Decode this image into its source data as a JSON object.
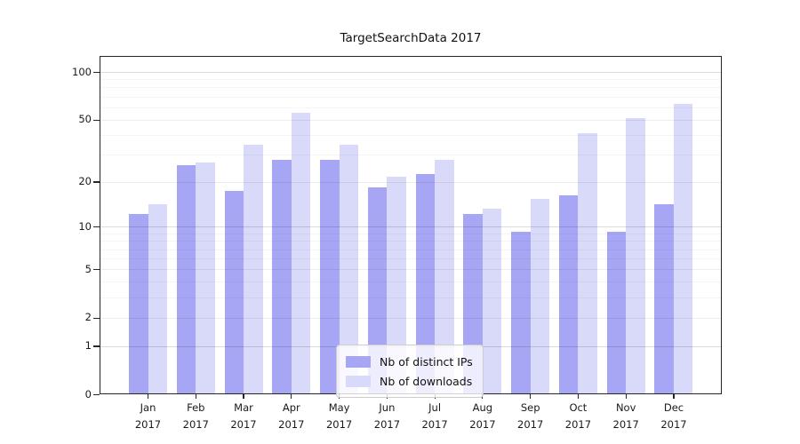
{
  "title": "TargetSearchData 2017",
  "chart_data": {
    "type": "bar",
    "title": "TargetSearchData 2017",
    "xlabel": "",
    "ylabel": "",
    "y_scale": "log(1+y) (symlog-like, 0 at baseline)",
    "grid": true,
    "legend_position": "inside lower center",
    "year": "2017",
    "months": [
      "Jan",
      "Feb",
      "Mar",
      "Apr",
      "May",
      "Jun",
      "Jul",
      "Aug",
      "Sep",
      "Oct",
      "Nov",
      "Dec"
    ],
    "categories": [
      "Jan 2017",
      "Feb 2017",
      "Mar 2017",
      "Apr 2017",
      "May 2017",
      "Jun 2017",
      "Jul 2017",
      "Aug 2017",
      "Sep 2017",
      "Oct 2017",
      "Nov 2017",
      "Dec 2017"
    ],
    "series": [
      {
        "name": "Nb of distinct IPs",
        "color": "#a6a6f5",
        "values": [
          12,
          25,
          17,
          27,
          27,
          18,
          22,
          12,
          9,
          16,
          9,
          14
        ]
      },
      {
        "name": "Nb of downloads",
        "color": "#d9d9f9",
        "values": [
          14,
          26,
          34,
          54,
          34,
          21,
          27,
          13,
          15,
          40,
          50,
          62
        ]
      }
    ],
    "yticks": [
      0,
      1,
      2,
      5,
      10,
      20,
      50,
      100
    ],
    "ytick_labels": [
      "0",
      "1",
      "2",
      "5",
      "10",
      "20",
      "50",
      "100"
    ],
    "ylim": [
      0,
      125
    ],
    "grid_minor_values": [
      3,
      4,
      6,
      7,
      8,
      9,
      30,
      40,
      60,
      70,
      80,
      90
    ],
    "grid_strong_values": [
      1,
      10,
      100
    ]
  }
}
